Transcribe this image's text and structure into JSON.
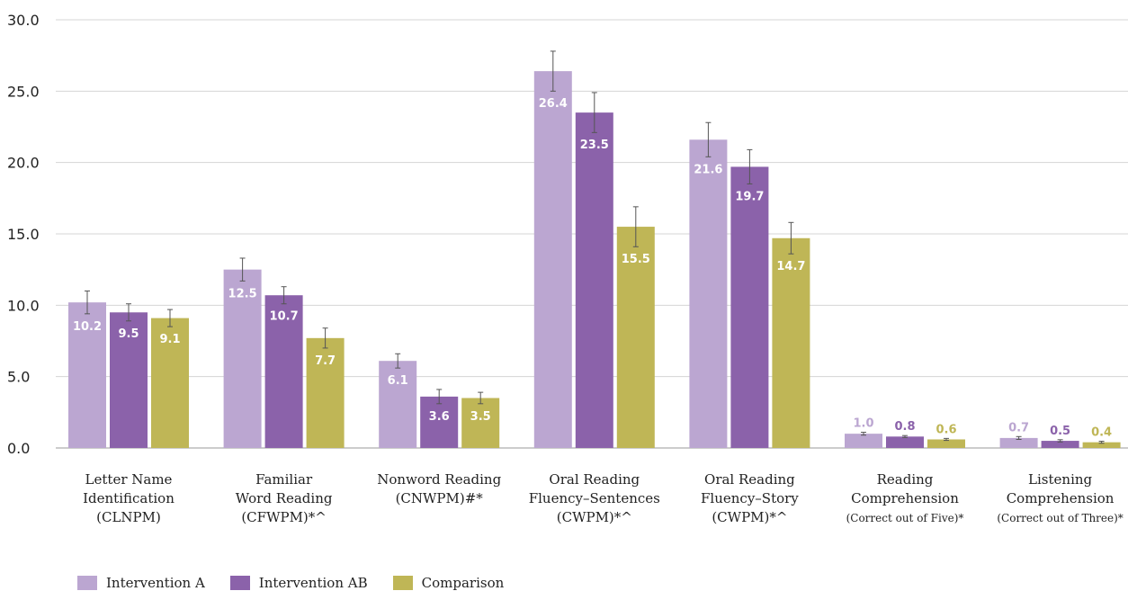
{
  "chart_data": {
    "type": "bar",
    "title": "",
    "xlabel": "",
    "ylabel": "",
    "ylim": [
      0,
      30
    ],
    "yticks": [
      "0.0",
      "5.0",
      "10.0",
      "15.0",
      "20.0",
      "25.0",
      "30.0"
    ],
    "grid": true,
    "legend_position": "bottom-left",
    "categories": [
      [
        "Letter Name",
        "Identification",
        "(CLNPM)"
      ],
      [
        "Familiar",
        "Word Reading",
        "(CFWPM)*^"
      ],
      [
        "Nonword Reading",
        "(CNWPM)#*"
      ],
      [
        "Oral Reading",
        "Fluency–Sentences",
        "(CWPM)*^"
      ],
      [
        "Oral Reading",
        "Fluency–Story",
        "(CWPM)*^"
      ],
      [
        "Reading",
        "Comprehension",
        "(Correct out of Five)*"
      ],
      [
        "Listening",
        "Comprehension",
        "(Correct out of Three)*"
      ]
    ],
    "series": [
      {
        "name": "Intervention A",
        "color": "#bba6d1",
        "values": [
          10.2,
          12.5,
          6.1,
          26.4,
          21.6,
          1.0,
          0.7
        ],
        "errors": [
          0.8,
          0.8,
          0.5,
          1.4,
          1.2,
          0.1,
          0.1
        ]
      },
      {
        "name": "Intervention AB",
        "color": "#8b62aa",
        "values": [
          9.5,
          10.7,
          3.6,
          23.5,
          19.7,
          0.8,
          0.5
        ],
        "errors": [
          0.6,
          0.6,
          0.5,
          1.4,
          1.2,
          0.07,
          0.08
        ]
      },
      {
        "name": "Comparison",
        "color": "#bfb656",
        "values": [
          9.1,
          7.7,
          3.5,
          15.5,
          14.7,
          0.6,
          0.4
        ],
        "errors": [
          0.6,
          0.7,
          0.4,
          1.4,
          1.1,
          0.07,
          0.07
        ]
      }
    ],
    "value_labels": [
      [
        "10.2",
        "12.5",
        "6.1",
        "26.4",
        "21.6",
        "1.0",
        "0.7"
      ],
      [
        "9.5",
        "10.7",
        "3.6",
        "23.5",
        "19.7",
        "0.8",
        "0.5"
      ],
      [
        "9.1",
        "7.7",
        "3.5",
        "15.5",
        "14.7",
        "0.6",
        "0.4"
      ]
    ]
  }
}
